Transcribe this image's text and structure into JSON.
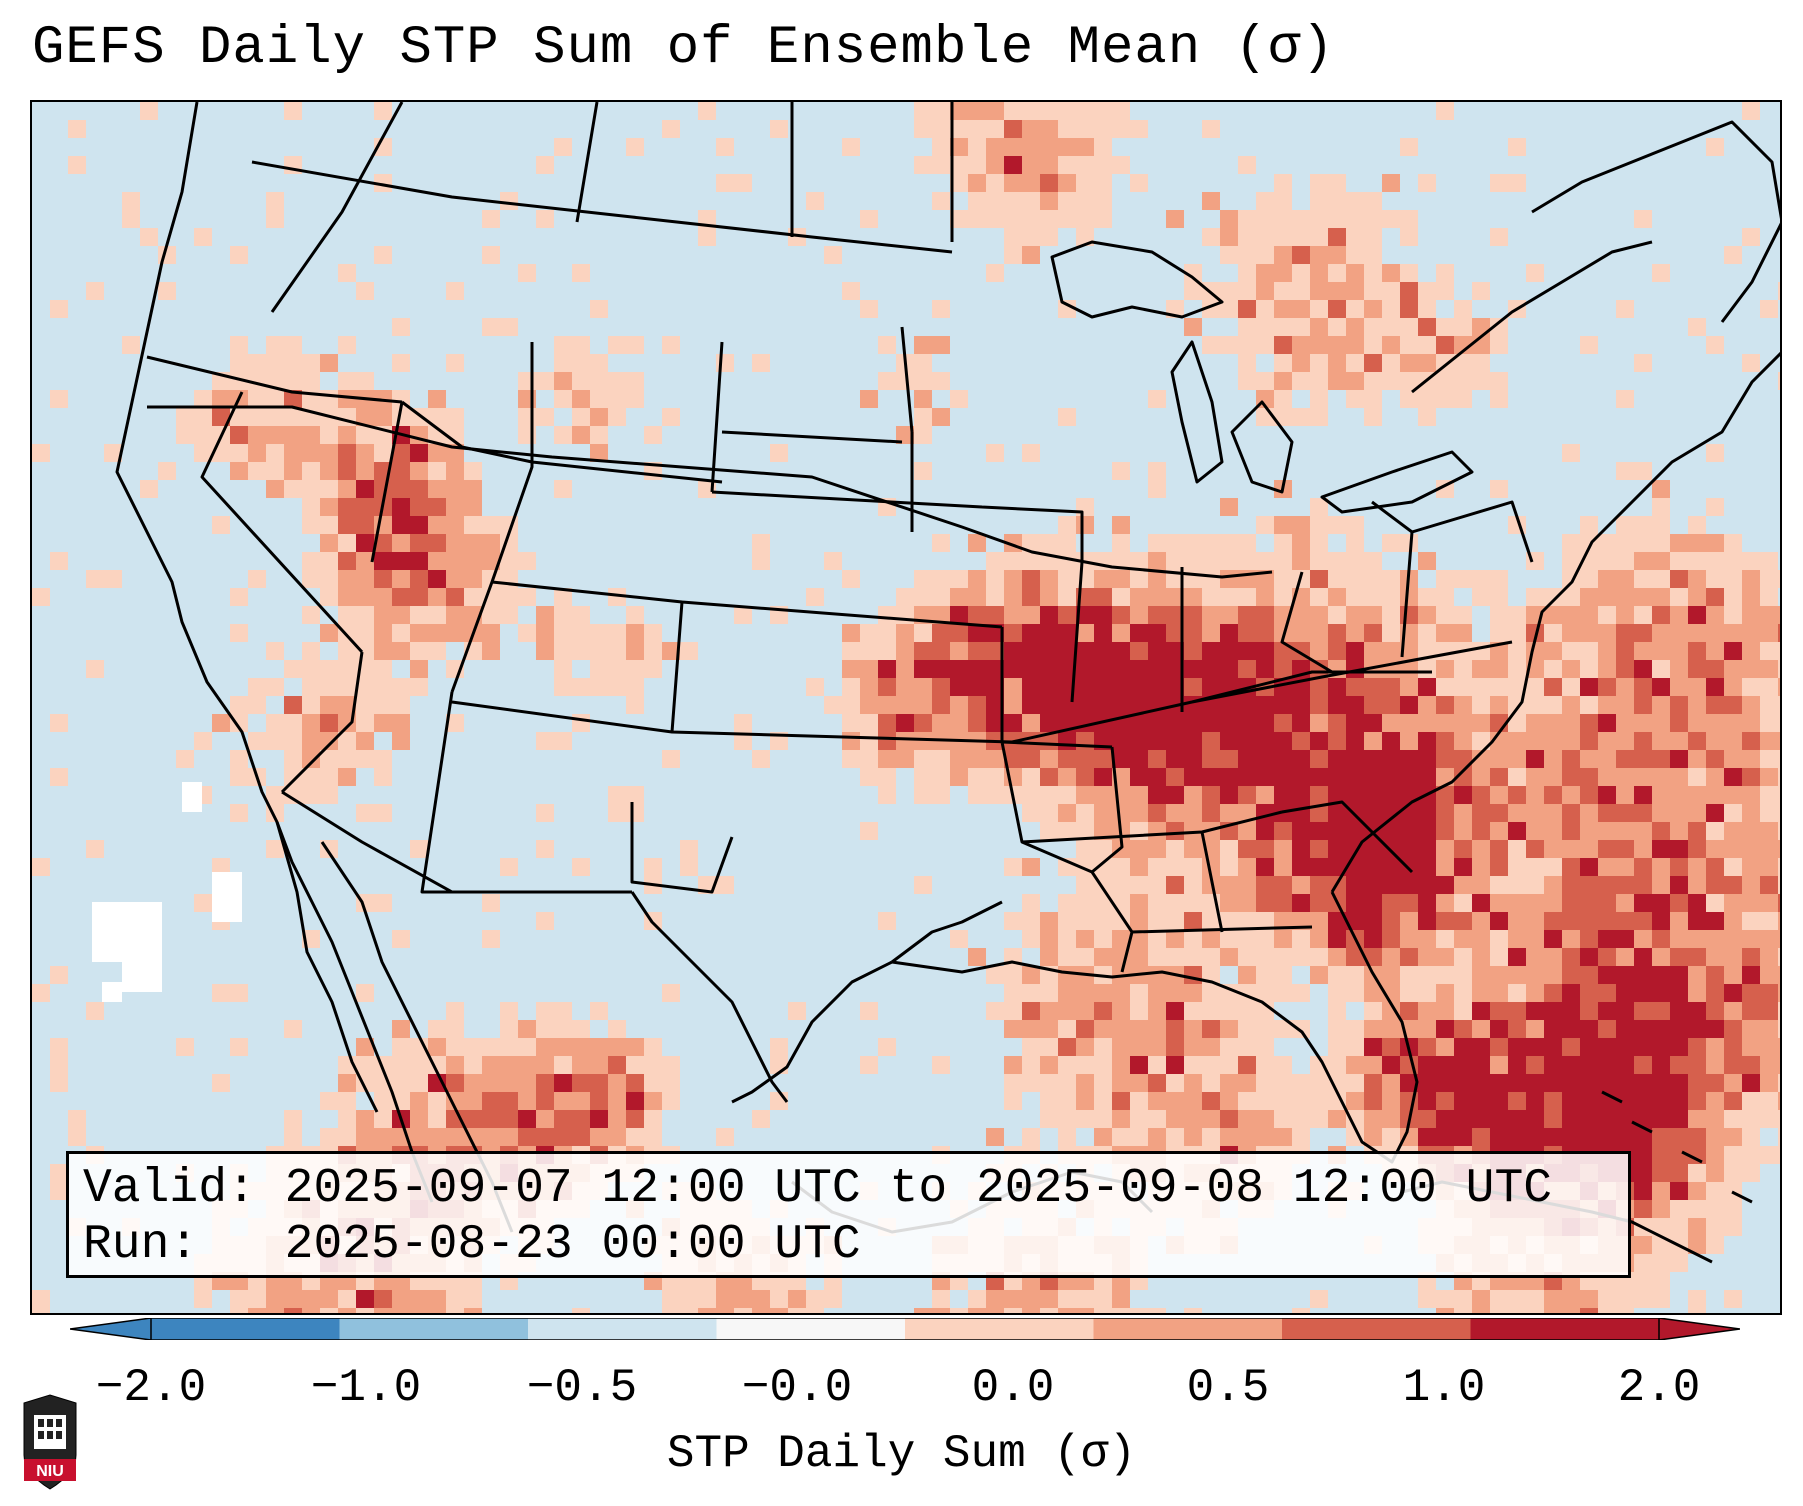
{
  "title": "GEFS Daily STP Sum of Ensemble Mean (σ)",
  "info": {
    "valid_label": "Valid:",
    "valid_value": "2025-09-07 12:00 UTC to 2025-09-08 12:00 UTC",
    "run_label": "Run:",
    "run_value": "2025-08-23 00:00 UTC"
  },
  "colorbar": {
    "label": "STP Daily Sum (σ)",
    "ticks": [
      "−2.0",
      "−1.0",
      "−0.5",
      "−0.0",
      "0.0",
      "0.5",
      "1.0",
      "2.0"
    ],
    "extend": "both",
    "colors": [
      "#3d85bf",
      "#90c1dd",
      "#cfe4ef",
      "#f7f7f7",
      "#fbd3bf",
      "#f2a283",
      "#d6604d",
      "#b2182b"
    ],
    "extend_low_color": "#3d85bf",
    "extend_high_color": "#b2182b"
  },
  "logo": {
    "text": "NIU",
    "icon": "university-seal-icon"
  },
  "map": {
    "background_color": "#cfe4ef",
    "missing_color": "#ffffff",
    "boundaries": "US states, Canada provinces, Mexico, coastlines",
    "anomaly_regions": [
      {
        "region": "Southeast US (Alabama / Georgia)",
        "level": "2.0"
      },
      {
        "region": "Western Atlantic / Bahamas",
        "level": "2.0"
      },
      {
        "region": "South Florida",
        "level": "2.0"
      },
      {
        "region": "Idaho / Utah / Nevada",
        "level": "2.0"
      },
      {
        "region": "Missouri / Arkansas",
        "level": "1.0"
      },
      {
        "region": "Ohio / Tennessee Valley",
        "level": "1.0"
      },
      {
        "region": "Gulf of Mexico",
        "level": "1.0"
      },
      {
        "region": "Ontario / Quebec",
        "level": "0.5"
      },
      {
        "region": "Baja California / Mexico",
        "level": "1.0"
      }
    ]
  }
}
